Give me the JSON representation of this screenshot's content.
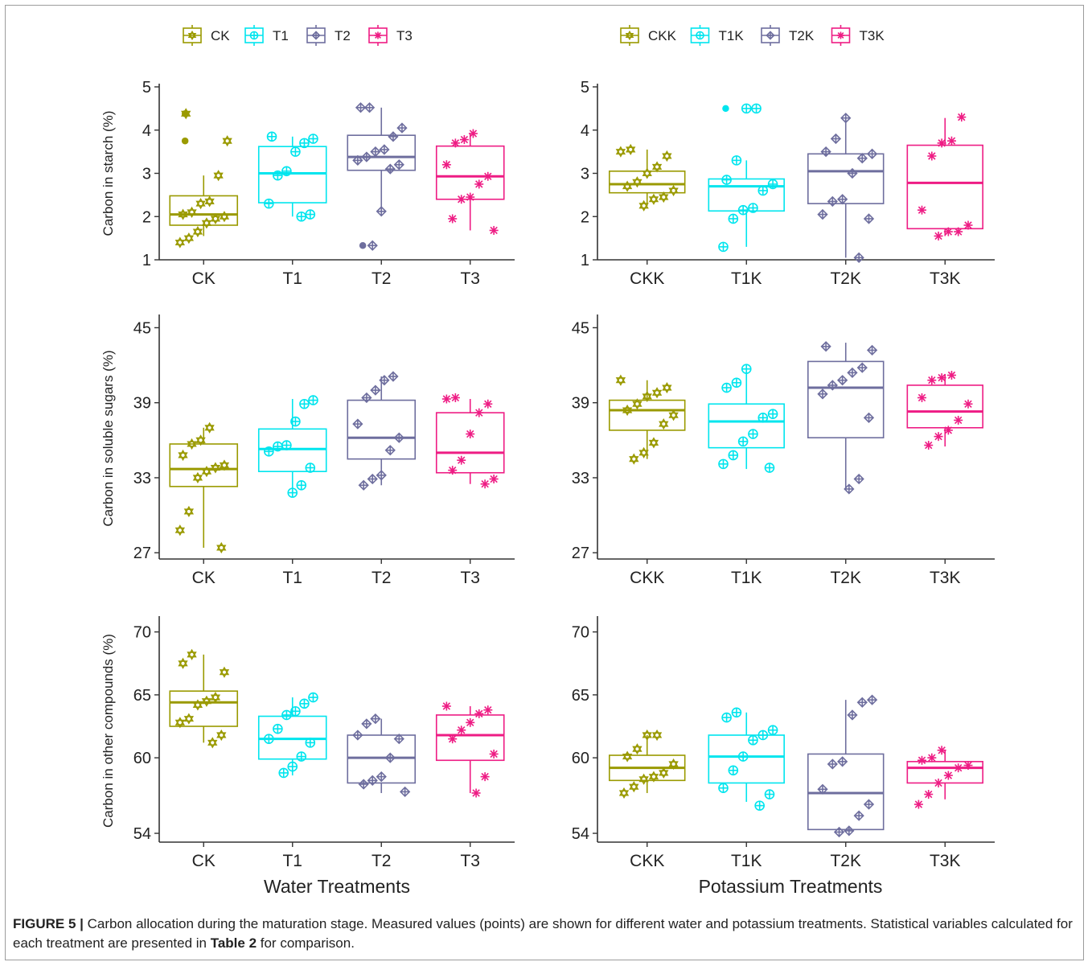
{
  "colors": {
    "CK": "#9a9a00",
    "T1": "#00e5ee",
    "T2": "#6e6e9e",
    "T3": "#ee1c84",
    "axis": "#333333"
  },
  "legends": [
    {
      "items": [
        "CK",
        "T1",
        "T2",
        "T3"
      ],
      "markers": [
        "star",
        "circle",
        "diamond",
        "asterisk"
      ]
    },
    {
      "items": [
        "CKK",
        "T1K",
        "T2K",
        "T3K"
      ],
      "markers": [
        "star",
        "circle",
        "diamond",
        "asterisk"
      ]
    }
  ],
  "x_titles": [
    "Water Treatments",
    "Potassium Treatments"
  ],
  "caption": {
    "label": "FIGURE 5 |",
    "text": " Carbon allocation during the maturation stage. Measured values (points) are shown for different water and potassium treatments. Statistical variables calculated for each treatment are presented in ",
    "ref": "Table 2",
    "tail": " for comparison."
  },
  "chart_data": [
    {
      "type": "box",
      "ylabel": "Carbon in starch (%)",
      "ylim": [
        1,
        5
      ],
      "yticks": [
        1,
        2,
        3,
        4,
        5
      ],
      "categories": [
        "CK",
        "T1",
        "T2",
        "T3"
      ],
      "boxes": [
        {
          "q1": 1.8,
          "median": 2.05,
          "q3": 2.48,
          "lo": 1.55,
          "hi": 2.95,
          "outliers": [
            3.75,
            4.38
          ],
          "points": [
            1.4,
            1.5,
            1.65,
            1.85,
            1.95,
            2.0,
            2.05,
            2.1,
            2.3,
            2.35,
            2.95,
            3.75,
            4.38
          ]
        },
        {
          "q1": 2.32,
          "median": 3.0,
          "q3": 3.62,
          "lo": 2.0,
          "hi": 3.85,
          "outliers": [],
          "points": [
            2.0,
            2.05,
            2.3,
            2.95,
            3.05,
            3.5,
            3.7,
            3.8,
            3.85
          ]
        },
        {
          "q1": 3.07,
          "median": 3.38,
          "q3": 3.88,
          "lo": 2.12,
          "hi": 4.52,
          "outliers": [
            1.33
          ],
          "points": [
            1.33,
            2.12,
            3.1,
            3.2,
            3.3,
            3.38,
            3.5,
            3.55,
            3.85,
            4.05,
            4.52,
            4.52
          ]
        },
        {
          "q1": 2.4,
          "median": 2.93,
          "q3": 3.63,
          "lo": 1.68,
          "hi": 3.92,
          "outliers": [],
          "points": [
            1.68,
            1.95,
            2.4,
            2.45,
            2.75,
            2.93,
            3.2,
            3.7,
            3.78,
            3.92
          ]
        }
      ]
    },
    {
      "type": "box",
      "ylabel": "",
      "ylim": [
        1,
        5
      ],
      "yticks": [
        1,
        2,
        3,
        4,
        5
      ],
      "categories": [
        "CKK",
        "T1K",
        "T2K",
        "T3K"
      ],
      "boxes": [
        {
          "q1": 2.55,
          "median": 2.75,
          "q3": 3.05,
          "lo": 2.25,
          "hi": 3.55,
          "outliers": [],
          "points": [
            2.25,
            2.4,
            2.45,
            2.6,
            2.7,
            2.8,
            3.0,
            3.15,
            3.4,
            3.5,
            3.55
          ]
        },
        {
          "q1": 2.13,
          "median": 2.7,
          "q3": 2.87,
          "lo": 1.3,
          "hi": 3.3,
          "outliers": [
            4.5
          ],
          "points": [
            1.3,
            1.95,
            2.15,
            2.2,
            2.6,
            2.75,
            2.85,
            3.3,
            4.5,
            4.5
          ]
        },
        {
          "q1": 2.3,
          "median": 3.05,
          "q3": 3.45,
          "lo": 1.05,
          "hi": 4.28,
          "outliers": [],
          "points": [
            1.05,
            1.95,
            2.05,
            2.35,
            2.4,
            3.0,
            3.35,
            3.45,
            3.5,
            3.8,
            4.28
          ]
        },
        {
          "q1": 1.72,
          "median": 2.78,
          "q3": 3.65,
          "lo": 1.55,
          "hi": 4.28,
          "outliers": [],
          "points": [
            1.55,
            1.65,
            1.65,
            1.8,
            2.15,
            3.4,
            3.7,
            3.75,
            4.3
          ]
        }
      ]
    },
    {
      "type": "box",
      "ylabel": "Carbon in soluble sugars (%)",
      "ylim": [
        26.5,
        45.8
      ],
      "yticks": [
        27,
        33,
        39,
        45
      ],
      "categories": [
        "CK",
        "T1",
        "T2",
        "T3"
      ],
      "boxes": [
        {
          "q1": 32.3,
          "median": 33.7,
          "q3": 35.7,
          "lo": 27.4,
          "hi": 37.0,
          "outliers": [],
          "points": [
            27.4,
            28.8,
            30.3,
            33.0,
            33.5,
            33.8,
            34.0,
            34.8,
            35.7,
            36.0,
            37.0
          ]
        },
        {
          "q1": 33.5,
          "median": 35.3,
          "q3": 36.9,
          "lo": 31.5,
          "hi": 39.3,
          "outliers": [],
          "points": [
            31.8,
            32.4,
            33.8,
            35.1,
            35.5,
            35.6,
            37.5,
            38.9,
            39.2
          ]
        },
        {
          "q1": 34.5,
          "median": 36.2,
          "q3": 39.2,
          "lo": 32.4,
          "hi": 41.1,
          "outliers": [],
          "points": [
            32.4,
            32.9,
            33.2,
            35.2,
            36.2,
            37.3,
            39.4,
            40.0,
            40.8,
            41.1
          ]
        },
        {
          "q1": 33.4,
          "median": 35.0,
          "q3": 38.2,
          "lo": 32.5,
          "hi": 39.3,
          "outliers": [],
          "points": [
            32.5,
            32.9,
            33.6,
            34.4,
            36.5,
            38.2,
            38.9,
            39.3,
            39.4
          ]
        }
      ]
    },
    {
      "type": "box",
      "ylabel": "",
      "ylim": [
        26.5,
        45.8
      ],
      "yticks": [
        27,
        33,
        39,
        45
      ],
      "categories": [
        "CKK",
        "T1K",
        "T2K",
        "T3K"
      ],
      "boxes": [
        {
          "q1": 36.8,
          "median": 38.4,
          "q3": 39.2,
          "lo": 34.5,
          "hi": 40.8,
          "outliers": [],
          "points": [
            34.5,
            35.0,
            35.8,
            37.3,
            38.0,
            38.4,
            38.9,
            39.5,
            39.8,
            40.2,
            40.8
          ]
        },
        {
          "q1": 35.4,
          "median": 37.5,
          "q3": 38.9,
          "lo": 33.7,
          "hi": 41.5,
          "outliers": [],
          "points": [
            33.8,
            34.1,
            34.8,
            35.9,
            36.5,
            37.8,
            38.1,
            40.2,
            40.6,
            41.7
          ]
        },
        {
          "q1": 36.2,
          "median": 40.2,
          "q3": 42.3,
          "lo": 32.1,
          "hi": 43.8,
          "outliers": [],
          "points": [
            32.1,
            32.9,
            37.8,
            39.7,
            40.4,
            40.8,
            41.4,
            41.8,
            43.2,
            43.5
          ]
        },
        {
          "q1": 37.0,
          "median": 38.3,
          "q3": 40.4,
          "lo": 35.5,
          "hi": 41.3,
          "outliers": [],
          "points": [
            35.6,
            36.3,
            36.8,
            37.6,
            38.9,
            39.4,
            40.8,
            41.0,
            41.2
          ]
        }
      ]
    },
    {
      "type": "box",
      "ylabel": "Carbon in other compounds (%)",
      "ylim": [
        53.3,
        71.0
      ],
      "yticks": [
        54,
        60,
        65,
        70
      ],
      "categories": [
        "CK",
        "T1",
        "T2",
        "T3"
      ],
      "boxes": [
        {
          "q1": 62.5,
          "median": 64.4,
          "q3": 65.3,
          "lo": 61.2,
          "hi": 68.2,
          "outliers": [],
          "points": [
            61.2,
            61.8,
            62.8,
            63.1,
            64.2,
            64.5,
            64.8,
            66.8,
            67.5,
            68.2
          ]
        },
        {
          "q1": 59.9,
          "median": 61.5,
          "q3": 63.3,
          "lo": 58.6,
          "hi": 64.8,
          "outliers": [],
          "points": [
            58.8,
            59.3,
            60.1,
            61.2,
            61.5,
            62.3,
            63.4,
            63.7,
            64.3,
            64.8
          ]
        },
        {
          "q1": 58.0,
          "median": 60.0,
          "q3": 61.8,
          "lo": 57.2,
          "hi": 63.1,
          "outliers": [],
          "points": [
            57.3,
            57.9,
            58.2,
            58.5,
            60.0,
            61.5,
            61.8,
            62.7,
            63.1
          ]
        },
        {
          "q1": 59.8,
          "median": 61.8,
          "q3": 63.4,
          "lo": 57.2,
          "hi": 64.1,
          "outliers": [],
          "points": [
            57.2,
            58.5,
            60.3,
            61.5,
            62.2,
            62.8,
            63.5,
            63.8,
            64.1
          ]
        }
      ]
    },
    {
      "type": "box",
      "ylabel": "",
      "ylim": [
        53.3,
        71.0
      ],
      "yticks": [
        54,
        60,
        65,
        70
      ],
      "categories": [
        "CKK",
        "T1K",
        "T2K",
        "T3K"
      ],
      "boxes": [
        {
          "q1": 58.2,
          "median": 59.2,
          "q3": 60.2,
          "lo": 57.2,
          "hi": 61.8,
          "outliers": [],
          "points": [
            57.2,
            57.7,
            58.3,
            58.5,
            58.8,
            59.5,
            60.1,
            60.7,
            61.8,
            61.8
          ]
        },
        {
          "q1": 58.0,
          "median": 60.1,
          "q3": 61.8,
          "lo": 56.5,
          "hi": 63.6,
          "outliers": [],
          "points": [
            56.2,
            57.1,
            57.6,
            59.0,
            60.1,
            61.4,
            61.8,
            62.2,
            63.2,
            63.6
          ]
        },
        {
          "q1": 54.3,
          "median": 57.2,
          "q3": 60.3,
          "lo": 54.1,
          "hi": 64.6,
          "outliers": [],
          "points": [
            54.1,
            54.2,
            55.4,
            56.3,
            57.5,
            59.5,
            59.7,
            63.4,
            64.4,
            64.6
          ]
        },
        {
          "q1": 58.0,
          "median": 59.2,
          "q3": 59.7,
          "lo": 56.7,
          "hi": 60.6,
          "outliers": [],
          "points": [
            56.3,
            57.1,
            58.0,
            58.6,
            59.2,
            59.4,
            59.8,
            60.0,
            60.6
          ]
        }
      ]
    }
  ]
}
